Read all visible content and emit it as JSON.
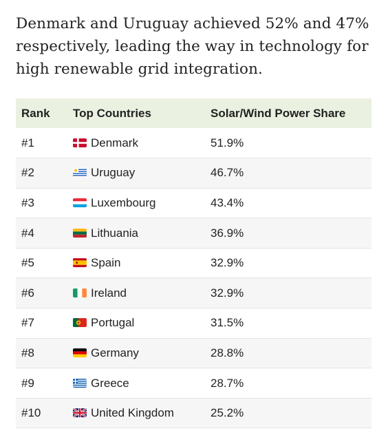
{
  "intro": "Denmark and Uruguay achieved 52% and 47% respectively, leading the way in technology for high renewable grid integration.",
  "table": {
    "headers": [
      "Rank",
      "Top Countries",
      "Solar/Wind Power Share"
    ],
    "rows": [
      {
        "rank": "#1",
        "country": "Denmark",
        "share": "51.9%",
        "flag": "denmark-flag-icon"
      },
      {
        "rank": "#2",
        "country": "Uruguay",
        "share": "46.7%",
        "flag": "uruguay-flag-icon"
      },
      {
        "rank": "#3",
        "country": "Luxembourg",
        "share": "43.4%",
        "flag": "luxembourg-flag-icon"
      },
      {
        "rank": "#4",
        "country": "Lithuania",
        "share": "36.9%",
        "flag": "lithuania-flag-icon"
      },
      {
        "rank": "#5",
        "country": "Spain",
        "share": "32.9%",
        "flag": "spain-flag-icon"
      },
      {
        "rank": "#6",
        "country": "Ireland",
        "share": "32.9%",
        "flag": "ireland-flag-icon"
      },
      {
        "rank": "#7",
        "country": "Portugal",
        "share": "31.5%",
        "flag": "portugal-flag-icon"
      },
      {
        "rank": "#8",
        "country": "Germany",
        "share": "28.8%",
        "flag": "germany-flag-icon"
      },
      {
        "rank": "#9",
        "country": "Greece",
        "share": "28.7%",
        "flag": "greece-flag-icon"
      },
      {
        "rank": "#10",
        "country": "United Kingdom",
        "share": "25.2%",
        "flag": "united-kingdom-flag-icon"
      }
    ]
  }
}
